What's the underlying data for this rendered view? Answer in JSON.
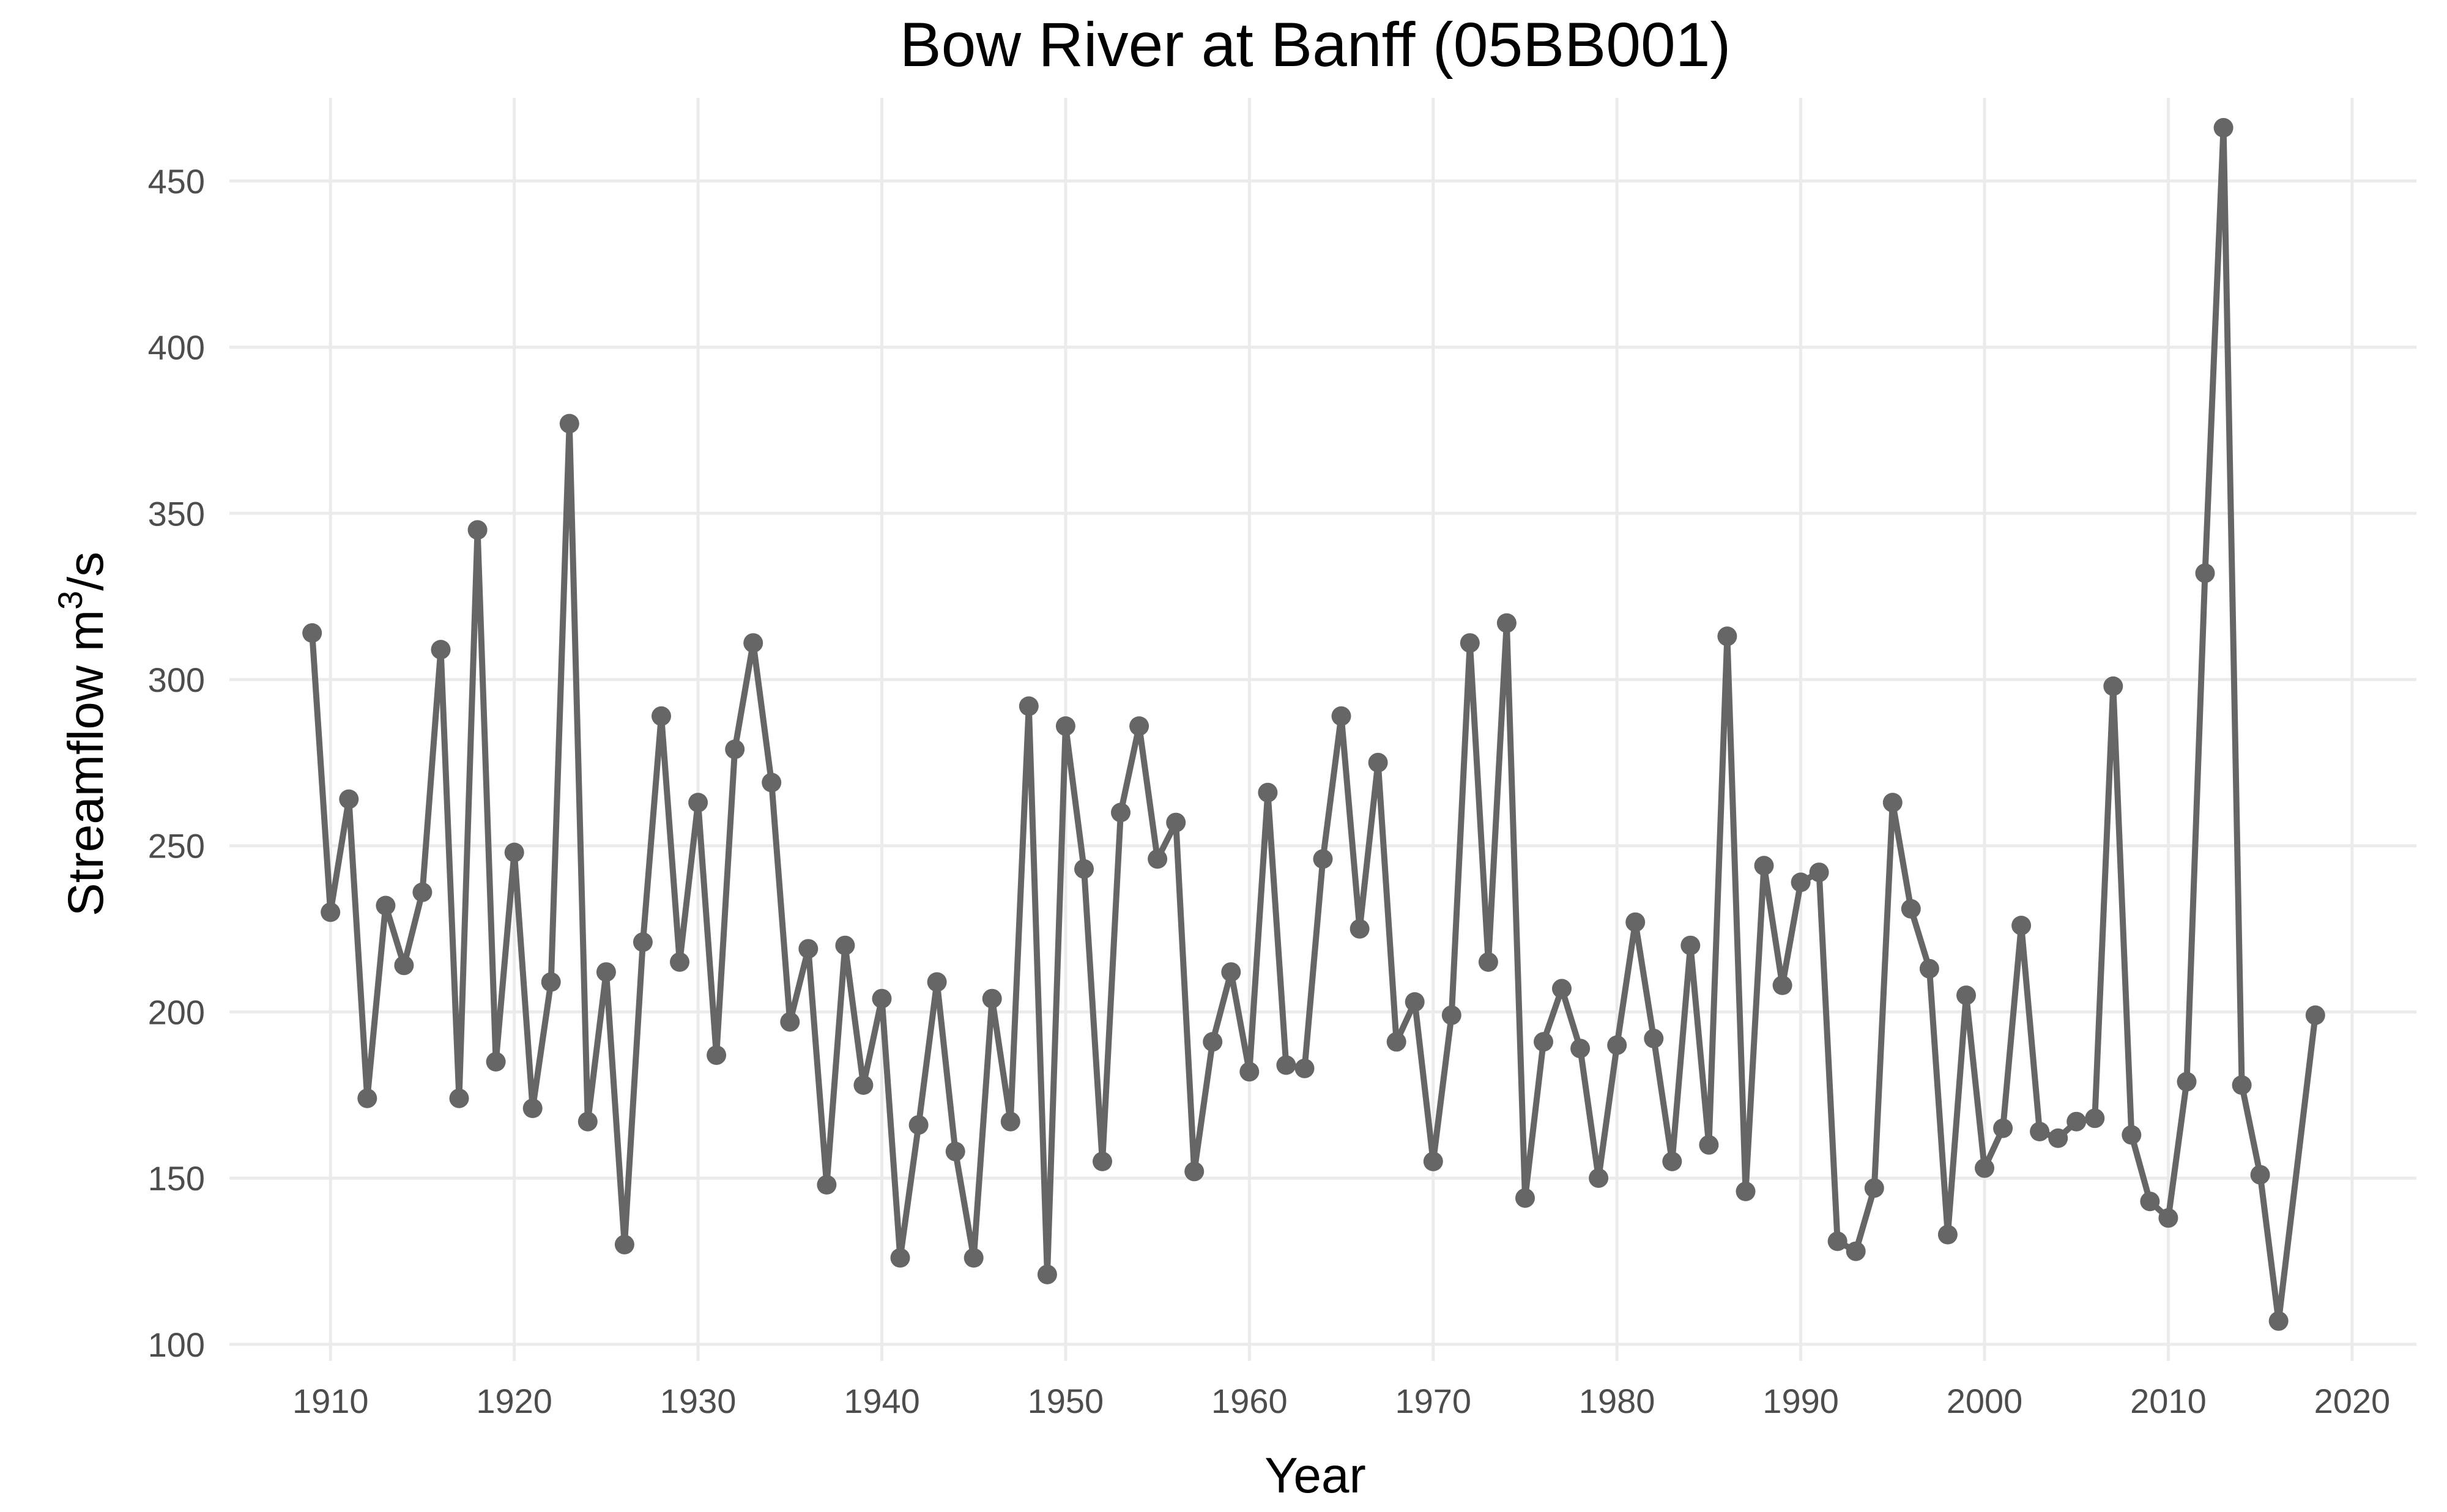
{
  "chart_data": {
    "type": "line",
    "title": "Bow River at Banff (05BB001)",
    "xlabel": "Year",
    "ylabel_main": "Streamflow m",
    "ylabel_sup": "3",
    "ylabel_tail": "/s",
    "xlim": [
      1904.5,
      2023.5
    ],
    "ylim": [
      95,
      475
    ],
    "x_ticks": [
      1910,
      1920,
      1930,
      1940,
      1950,
      1960,
      1970,
      1980,
      1990,
      2000,
      2010,
      2020
    ],
    "y_ticks": [
      100,
      150,
      200,
      250,
      300,
      350,
      400,
      450
    ],
    "grid": true,
    "legend": "none",
    "series_color": "#666666",
    "series": [
      {
        "x": [
          1909,
          1910,
          1911,
          1912,
          1913,
          1914,
          1915,
          1916,
          1917,
          1918,
          1919,
          1920,
          1921,
          1922,
          1923,
          1924,
          1925,
          1926,
          1927,
          1928,
          1929,
          1930,
          1931,
          1932,
          1933,
          1934,
          1935,
          1936,
          1937,
          1938,
          1939,
          1940,
          1941,
          1942,
          1943,
          1944,
          1945,
          1946,
          1947,
          1948,
          1949,
          1950,
          1951,
          1952,
          1953,
          1954,
          1955,
          1956,
          1957,
          1958,
          1959,
          1960,
          1961,
          1962,
          1963,
          1964,
          1965,
          1966,
          1967,
          1968,
          1969,
          1970,
          1971,
          1972,
          1973,
          1974,
          1975,
          1976,
          1977,
          1978,
          1979,
          1980,
          1981,
          1982,
          1983,
          1984,
          1985,
          1986,
          1987,
          1988,
          1989,
          1990,
          1991,
          1992,
          1993,
          1994,
          1995,
          1996,
          1997,
          1998,
          1999,
          2000,
          2001,
          2002,
          2003,
          2004,
          2005,
          2006,
          2007,
          2008,
          2009,
          2010,
          2011,
          2012,
          2013,
          2014,
          2015,
          2016,
          2018
        ],
        "y": [
          314,
          230,
          264,
          174,
          232,
          214,
          236,
          309,
          174,
          345,
          185,
          248,
          171,
          209,
          377,
          167,
          212,
          130,
          221,
          289,
          215,
          263,
          187,
          279,
          311,
          269,
          197,
          219,
          148,
          220,
          178,
          204,
          126,
          166,
          209,
          158,
          126,
          204,
          167,
          292,
          121,
          286,
          243,
          155,
          260,
          286,
          246,
          257,
          152,
          191,
          212,
          182,
          266,
          184,
          183,
          246,
          289,
          225,
          275,
          191,
          203,
          155,
          199,
          311,
          215,
          317,
          144,
          191,
          207,
          189,
          150,
          190,
          227,
          192,
          155,
          220,
          160,
          313,
          146,
          244,
          208,
          239,
          242,
          131,
          128,
          147,
          263,
          231,
          213,
          133,
          205,
          153,
          165,
          226,
          164,
          162,
          167,
          168,
          298,
          163,
          143,
          138,
          179,
          332,
          466,
          178,
          151,
          107,
          199
        ]
      }
    ]
  }
}
